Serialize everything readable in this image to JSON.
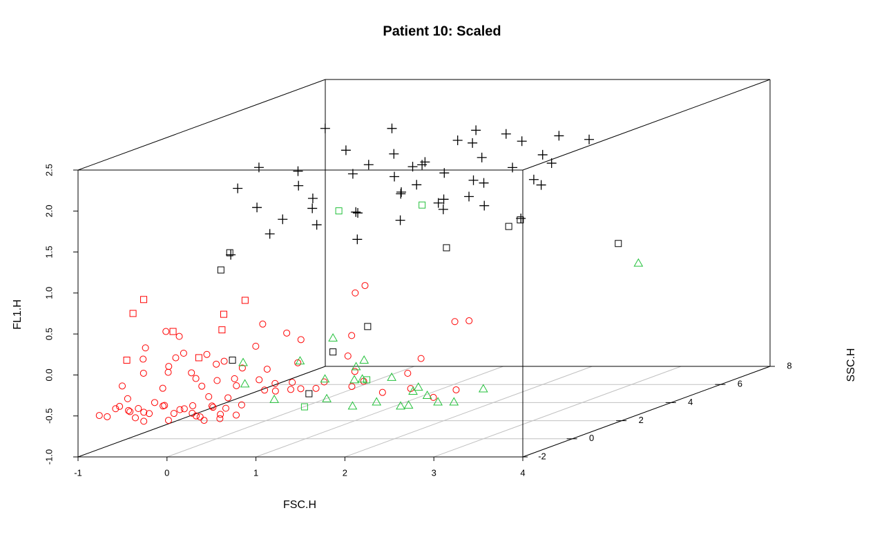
{
  "chart_data": {
    "type": "scatter3d",
    "title": "Patient 10: Scaled",
    "xlabel": "FSC.H",
    "ylabel": "SSC.H",
    "zlabel": "FL1.H",
    "xlim": [
      -1,
      4
    ],
    "ylim": [
      -2,
      8
    ],
    "zlim": [
      -1,
      2.5
    ],
    "xticks": [
      -1,
      0,
      1,
      2,
      3,
      4
    ],
    "yticks": [
      -2,
      0,
      2,
      4,
      6,
      8
    ],
    "zticks": [
      {
        "value": -1,
        "label": "-1.0"
      },
      -0.5,
      {
        "value": 0,
        "label": "0.0"
      },
      0.5,
      {
        "value": 1,
        "label": "1.0"
      },
      1.5,
      {
        "value": 2,
        "label": "2.0"
      },
      2.5
    ],
    "grid": true,
    "series": [
      {
        "marker": "plus",
        "color": "#000000",
        "x": [
          0.1,
          0.2,
          0.4,
          0.5,
          0.7,
          0.9,
          1.0,
          1.2,
          1.3,
          1.4,
          1.5,
          1.6,
          1.7,
          1.8,
          1.9,
          2.0,
          2.1,
          2.2,
          2.3,
          2.4,
          2.5,
          2.6,
          2.7,
          2.8,
          3.0,
          0.3,
          0.6,
          0.8,
          1.1,
          1.3,
          1.5,
          1.7,
          1.9,
          2.1,
          2.3,
          2.5,
          2.7,
          2.9,
          3.2,
          1.0,
          1.6,
          2.2,
          2.8,
          0.5,
          1.4,
          2.0,
          2.6,
          2.4,
          1.9,
          2.1
        ],
        "y": [
          0.5,
          1.0,
          0.2,
          1.5,
          0.8,
          2.0,
          0.3,
          1.2,
          2.5,
          0.6,
          1.8,
          0.4,
          2.2,
          1.0,
          1.6,
          0.9,
          2.8,
          1.3,
          0.7,
          2.1,
          1.4,
          3.0,
          0.5,
          1.9,
          2.4,
          -0.5,
          0.0,
          -0.2,
          0.1,
          -0.8,
          0.3,
          -0.4,
          0.6,
          -0.1,
          0.9,
          0.2,
          1.1,
          0.4,
          0.8,
          3.5,
          4.0,
          3.8,
          5.0,
          2.6,
          2.9,
          3.3,
          4.5,
          4.5,
          6.0,
          6.0
        ],
        "z": [
          2.0,
          2.2,
          1.8,
          2.1,
          2.0,
          2.3,
          1.9,
          2.1,
          2.2,
          1.7,
          2.0,
          2.3,
          2.1,
          1.9,
          2.2,
          2.0,
          2.3,
          2.1,
          1.8,
          2.2,
          2.0,
          2.3,
          1.9,
          2.1,
          2.2,
          1.3,
          1.5,
          1.7,
          1.6,
          1.9,
          1.4,
          1.8,
          1.6,
          2.0,
          1.7,
          1.9,
          2.0,
          1.8,
          1.6,
          2.4,
          2.2,
          2.3,
          2.1,
          2.5,
          2.0,
          2.4,
          2.2,
          1.6,
          1.5,
          1.7
        ]
      },
      {
        "marker": "square",
        "color": "#000000",
        "x": [
          0.05,
          0.15,
          0.18,
          1.04,
          1.31,
          1.7,
          2.03,
          2.73,
          2.86,
          2.85
        ],
        "y": [
          0,
          0,
          0,
          0,
          0,
          0,
          2,
          2,
          2,
          6
        ],
        "z": [
          1.06,
          1.27,
          -0.04,
          -0.45,
          0.06,
          0.37,
          1.11,
          1.37,
          1.45,
          0.72
        ]
      },
      {
        "marker": "circle",
        "color": "#ff0000",
        "x": [
          -0.95,
          -0.9,
          -0.85,
          -0.8,
          -0.75,
          -0.7,
          -0.65,
          -0.6,
          -0.55,
          -0.5,
          -0.45,
          -0.4,
          -0.35,
          -0.3,
          -0.25,
          -0.2,
          -0.15,
          -0.1,
          -0.05,
          0.0,
          0.05,
          0.1,
          0.15,
          0.2,
          0.25,
          0.3,
          0.35,
          0.4,
          0.45,
          0.5,
          -0.92,
          -0.82,
          -0.72,
          -0.62,
          -0.52,
          -0.42,
          -0.32,
          -0.22,
          -0.12,
          -0.02,
          0.08,
          0.18,
          0.28,
          0.38,
          0.48,
          0.58,
          0.68,
          0.78,
          0.88,
          0.98,
          -0.88,
          -0.68,
          -0.48,
          -0.28,
          -0.08,
          0.12,
          0.32,
          0.52,
          0.72,
          0.92,
          1.1,
          1.3,
          1.5,
          1.7,
          1.9,
          2.1,
          2.3,
          2.5,
          1.2,
          1.6,
          1.56,
          1.67,
          2.68,
          2.84,
          2.3,
          0.52,
          0.79,
          0.95,
          1.52,
          -0.29,
          -0.14,
          -0.52,
          0.17,
          0.72
        ],
        "y": [
          -1,
          -1.5,
          -0.5,
          -1.2,
          -0.8,
          -1.4,
          -0.6,
          -1,
          -1.3,
          -0.7,
          -1.1,
          -1.5,
          -0.9,
          -0.4,
          -1.2,
          -1,
          -1.4,
          -0.6,
          -0.8,
          -1.3,
          -1,
          -0.5,
          -1.2,
          -0.9,
          -1.4,
          -0.7,
          -1.1,
          -1.3,
          -0.6,
          -1,
          -0.5,
          0,
          -1,
          0.3,
          -0.3,
          0.5,
          -0.8,
          0.2,
          -0.4,
          0.1,
          -0.6,
          0.4,
          -0.2,
          -0.9,
          0,
          0.3,
          -0.5,
          0.2,
          -0.1,
          0.5,
          0.2,
          0.8,
          0.4,
          1,
          0.6,
          0.3,
          0.9,
          0.5,
          0.7,
          0.1,
          0.4,
          0.8,
          0.2,
          0.6,
          0.9,
          0.3,
          0.5,
          0.7,
          1,
          0.2,
          0,
          0,
          0,
          0,
          0,
          0,
          0,
          0,
          0,
          -1,
          -1,
          -1,
          -1,
          -1
        ],
        "z": [
          -0.62,
          -0.55,
          -0.6,
          -0.5,
          -0.58,
          -0.45,
          -0.61,
          -0.52,
          -0.6,
          -0.48,
          -0.57,
          -0.62,
          -0.5,
          -0.6,
          -0.46,
          -0.58,
          -0.62,
          -0.53,
          -0.6,
          -0.49,
          -0.61,
          -0.56,
          -0.6,
          -0.5,
          -0.62,
          -0.55,
          -0.58,
          -0.61,
          -0.52,
          -0.6,
          -0.3,
          -0.2,
          -0.4,
          -0.15,
          -0.35,
          -0.25,
          -0.1,
          -0.38,
          -0.22,
          -0.3,
          -0.42,
          -0.18,
          -0.33,
          -0.4,
          -0.28,
          -0.45,
          -0.35,
          -0.42,
          -0.3,
          -0.44,
          -0.05,
          -0.1,
          0.0,
          -0.2,
          -0.12,
          -0.3,
          -0.25,
          -0.38,
          -0.15,
          -0.4,
          -0.35,
          -0.45,
          -0.2,
          -0.5,
          -0.3,
          -0.42,
          -0.55,
          -0.48,
          -0.1,
          -0.32,
          0.78,
          0.87,
          0.43,
          0.44,
          -0.02,
          0.4,
          0.29,
          0.21,
          0.26,
          0.42,
          0.36,
          0.22,
          0.14,
          0.24
        ]
      },
      {
        "marker": "square",
        "color": "#ff0000",
        "x": [
          -0.54,
          -0.66,
          -0.21,
          0.6,
          0.36,
          0.34,
          -0.73,
          0.08
        ],
        "y": [
          -1,
          -1,
          -1,
          -1,
          -1,
          -1,
          -1,
          -1
        ],
        "z": [
          0.81,
          0.64,
          0.42,
          0.8,
          0.63,
          0.44,
          0.07,
          0.1
        ]
      },
      {
        "marker": "triangle",
        "color": "#22c03a",
        "x": [
          0.3,
          0.32,
          0.94,
          1.31,
          1.57,
          1.66,
          1.55,
          1.53,
          1.97,
          2.21,
          2.27,
          2.37,
          2.49,
          2.67,
          3.0,
          1.8,
          2.07,
          2.16,
          1.24,
          0.65,
          1.22,
          1.64,
          2.52
        ],
        "y": [
          0,
          0,
          0,
          0,
          0,
          0,
          0,
          0,
          0,
          0,
          0,
          0,
          0,
          0,
          0,
          0,
          0,
          0,
          0,
          0,
          0,
          0,
          8
        ],
        "z": [
          -0.07,
          -0.33,
          -0.05,
          0.23,
          -0.12,
          -0.04,
          -0.28,
          -0.6,
          -0.25,
          -0.42,
          -0.37,
          -0.47,
          -0.55,
          -0.55,
          -0.39,
          -0.55,
          -0.6,
          -0.59,
          -0.51,
          -0.52,
          -0.27,
          -0.27,
          0.26
        ]
      },
      {
        "marker": "square",
        "color": "#22c03a",
        "x": [
          1.2,
          0.82,
          1.69,
          0.99
        ],
        "y": [
          4,
          2,
          0,
          0
        ],
        "z": [
          1.41,
          1.56,
          -0.28,
          -0.61
        ]
      }
    ]
  }
}
